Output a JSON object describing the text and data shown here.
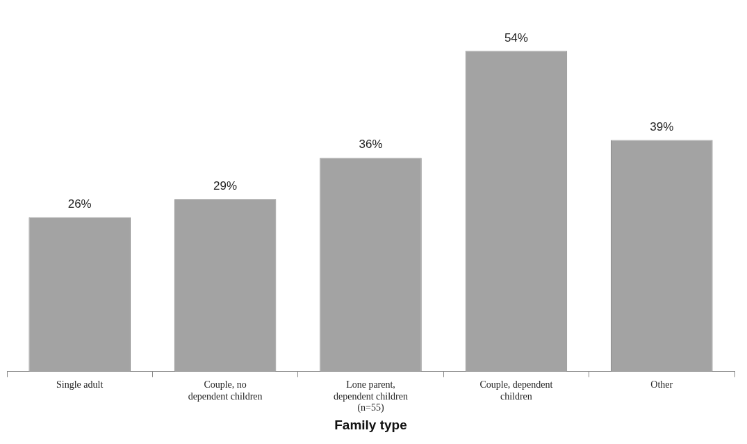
{
  "chart_data": {
    "type": "bar",
    "xlabel": "Family type",
    "categories": [
      "Single adult",
      "Couple, no dependent children",
      "Lone parent, dependent children (n=55)",
      "Couple, dependent children",
      "Other"
    ],
    "values": [
      26,
      29,
      36,
      54,
      39
    ],
    "value_labels": [
      "26%",
      "29%",
      "36%",
      "54%",
      "39%"
    ],
    "color": "#a3a3a3",
    "grid": false,
    "legend": false
  }
}
